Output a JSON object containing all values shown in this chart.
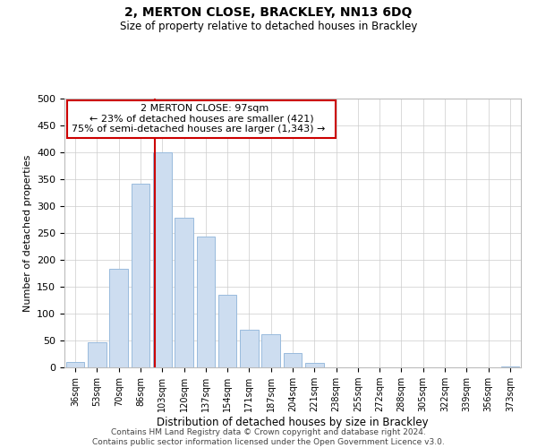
{
  "title": "2, MERTON CLOSE, BRACKLEY, NN13 6DQ",
  "subtitle": "Size of property relative to detached houses in Brackley",
  "xlabel": "Distribution of detached houses by size in Brackley",
  "ylabel": "Number of detached properties",
  "bar_labels": [
    "36sqm",
    "53sqm",
    "70sqm",
    "86sqm",
    "103sqm",
    "120sqm",
    "137sqm",
    "154sqm",
    "171sqm",
    "187sqm",
    "204sqm",
    "221sqm",
    "238sqm",
    "255sqm",
    "272sqm",
    "288sqm",
    "305sqm",
    "322sqm",
    "339sqm",
    "356sqm",
    "373sqm"
  ],
  "bar_values": [
    10,
    46,
    183,
    341,
    400,
    278,
    243,
    135,
    70,
    62,
    26,
    8,
    0,
    0,
    0,
    0,
    0,
    0,
    0,
    0,
    2
  ],
  "bar_color": "#cdddf0",
  "bar_edge_color": "#99bbdd",
  "vline_color": "#cc0000",
  "ylim": [
    0,
    500
  ],
  "yticks": [
    0,
    50,
    100,
    150,
    200,
    250,
    300,
    350,
    400,
    450,
    500
  ],
  "annotation_title": "2 MERTON CLOSE: 97sqm",
  "annotation_line1": "← 23% of detached houses are smaller (421)",
  "annotation_line2": "75% of semi-detached houses are larger (1,343) →",
  "annotation_box_color": "#ffffff",
  "annotation_box_edge": "#cc0000",
  "footer_line1": "Contains HM Land Registry data © Crown copyright and database right 2024.",
  "footer_line2": "Contains public sector information licensed under the Open Government Licence v3.0.",
  "background_color": "#ffffff",
  "grid_color": "#cccccc"
}
